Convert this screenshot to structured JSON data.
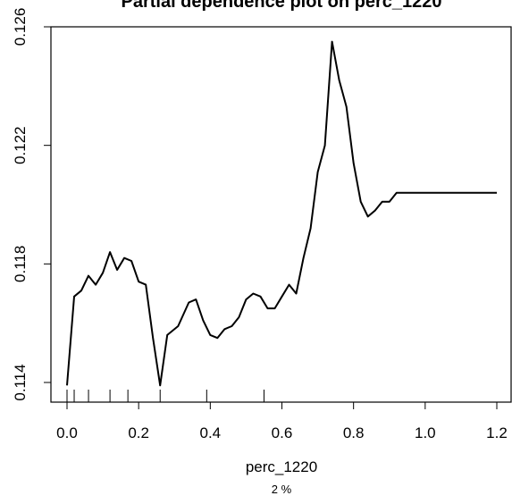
{
  "chart_data": {
    "type": "line",
    "title": "Partial dependence plot on perc_1220",
    "xlabel": "perc_1220",
    "subtitle": "2 %",
    "ylabel": "",
    "xlim": [
      0,
      1.2
    ],
    "ylim": [
      0.114,
      0.126
    ],
    "x_ticks": [
      0.0,
      0.2,
      0.4,
      0.6,
      0.8,
      1.0,
      1.2
    ],
    "x_tick_labels": [
      "0.0",
      "0.2",
      "0.4",
      "0.6",
      "0.8",
      "1.0",
      "1.2"
    ],
    "y_ticks": [
      0.114,
      0.118,
      0.122,
      0.126
    ],
    "y_tick_labels": [
      "0.114",
      "0.118",
      "0.122",
      "0.126"
    ],
    "grid": false,
    "rug": [
      0.0,
      0.02,
      0.06,
      0.12,
      0.17,
      0.26,
      0.39,
      0.55
    ],
    "series": [
      {
        "x": [
          0.0,
          0.02,
          0.04,
          0.06,
          0.08,
          0.1,
          0.12,
          0.14,
          0.16,
          0.18,
          0.2,
          0.22,
          0.24,
          0.26,
          0.28,
          0.31,
          0.34,
          0.36,
          0.38,
          0.4,
          0.42,
          0.44,
          0.46,
          0.48,
          0.5,
          0.52,
          0.54,
          0.56,
          0.58,
          0.6,
          0.62,
          0.64,
          0.66,
          0.68,
          0.7,
          0.72,
          0.74,
          0.76,
          0.78,
          0.8,
          0.82,
          0.84,
          0.86,
          0.88,
          0.9,
          0.92,
          0.94,
          0.96,
          0.98,
          1.0,
          1.02,
          1.04,
          1.06,
          1.08,
          1.1,
          1.12,
          1.14,
          1.16,
          1.18,
          1.2
        ],
        "values": [
          0.1139,
          0.1169,
          0.1171,
          0.1176,
          0.1173,
          0.1177,
          0.1184,
          0.1178,
          0.1182,
          0.1181,
          0.1174,
          0.1173,
          0.1155,
          0.1139,
          0.1156,
          0.1159,
          0.1167,
          0.1168,
          0.1161,
          0.1156,
          0.1155,
          0.1158,
          0.1159,
          0.1162,
          0.1168,
          0.117,
          0.1169,
          0.1165,
          0.1165,
          0.1169,
          0.1173,
          0.117,
          0.1182,
          0.1192,
          0.1211,
          0.122,
          0.1255,
          0.1242,
          0.1233,
          0.1214,
          0.1201,
          0.1196,
          0.1198,
          0.1201,
          0.1201,
          0.1204,
          0.1204,
          0.1204,
          0.1204,
          0.1204,
          0.1204,
          0.1204,
          0.1204,
          0.1204,
          0.1204,
          0.1204,
          0.1204,
          0.1204,
          0.1204,
          0.1204
        ]
      }
    ]
  }
}
